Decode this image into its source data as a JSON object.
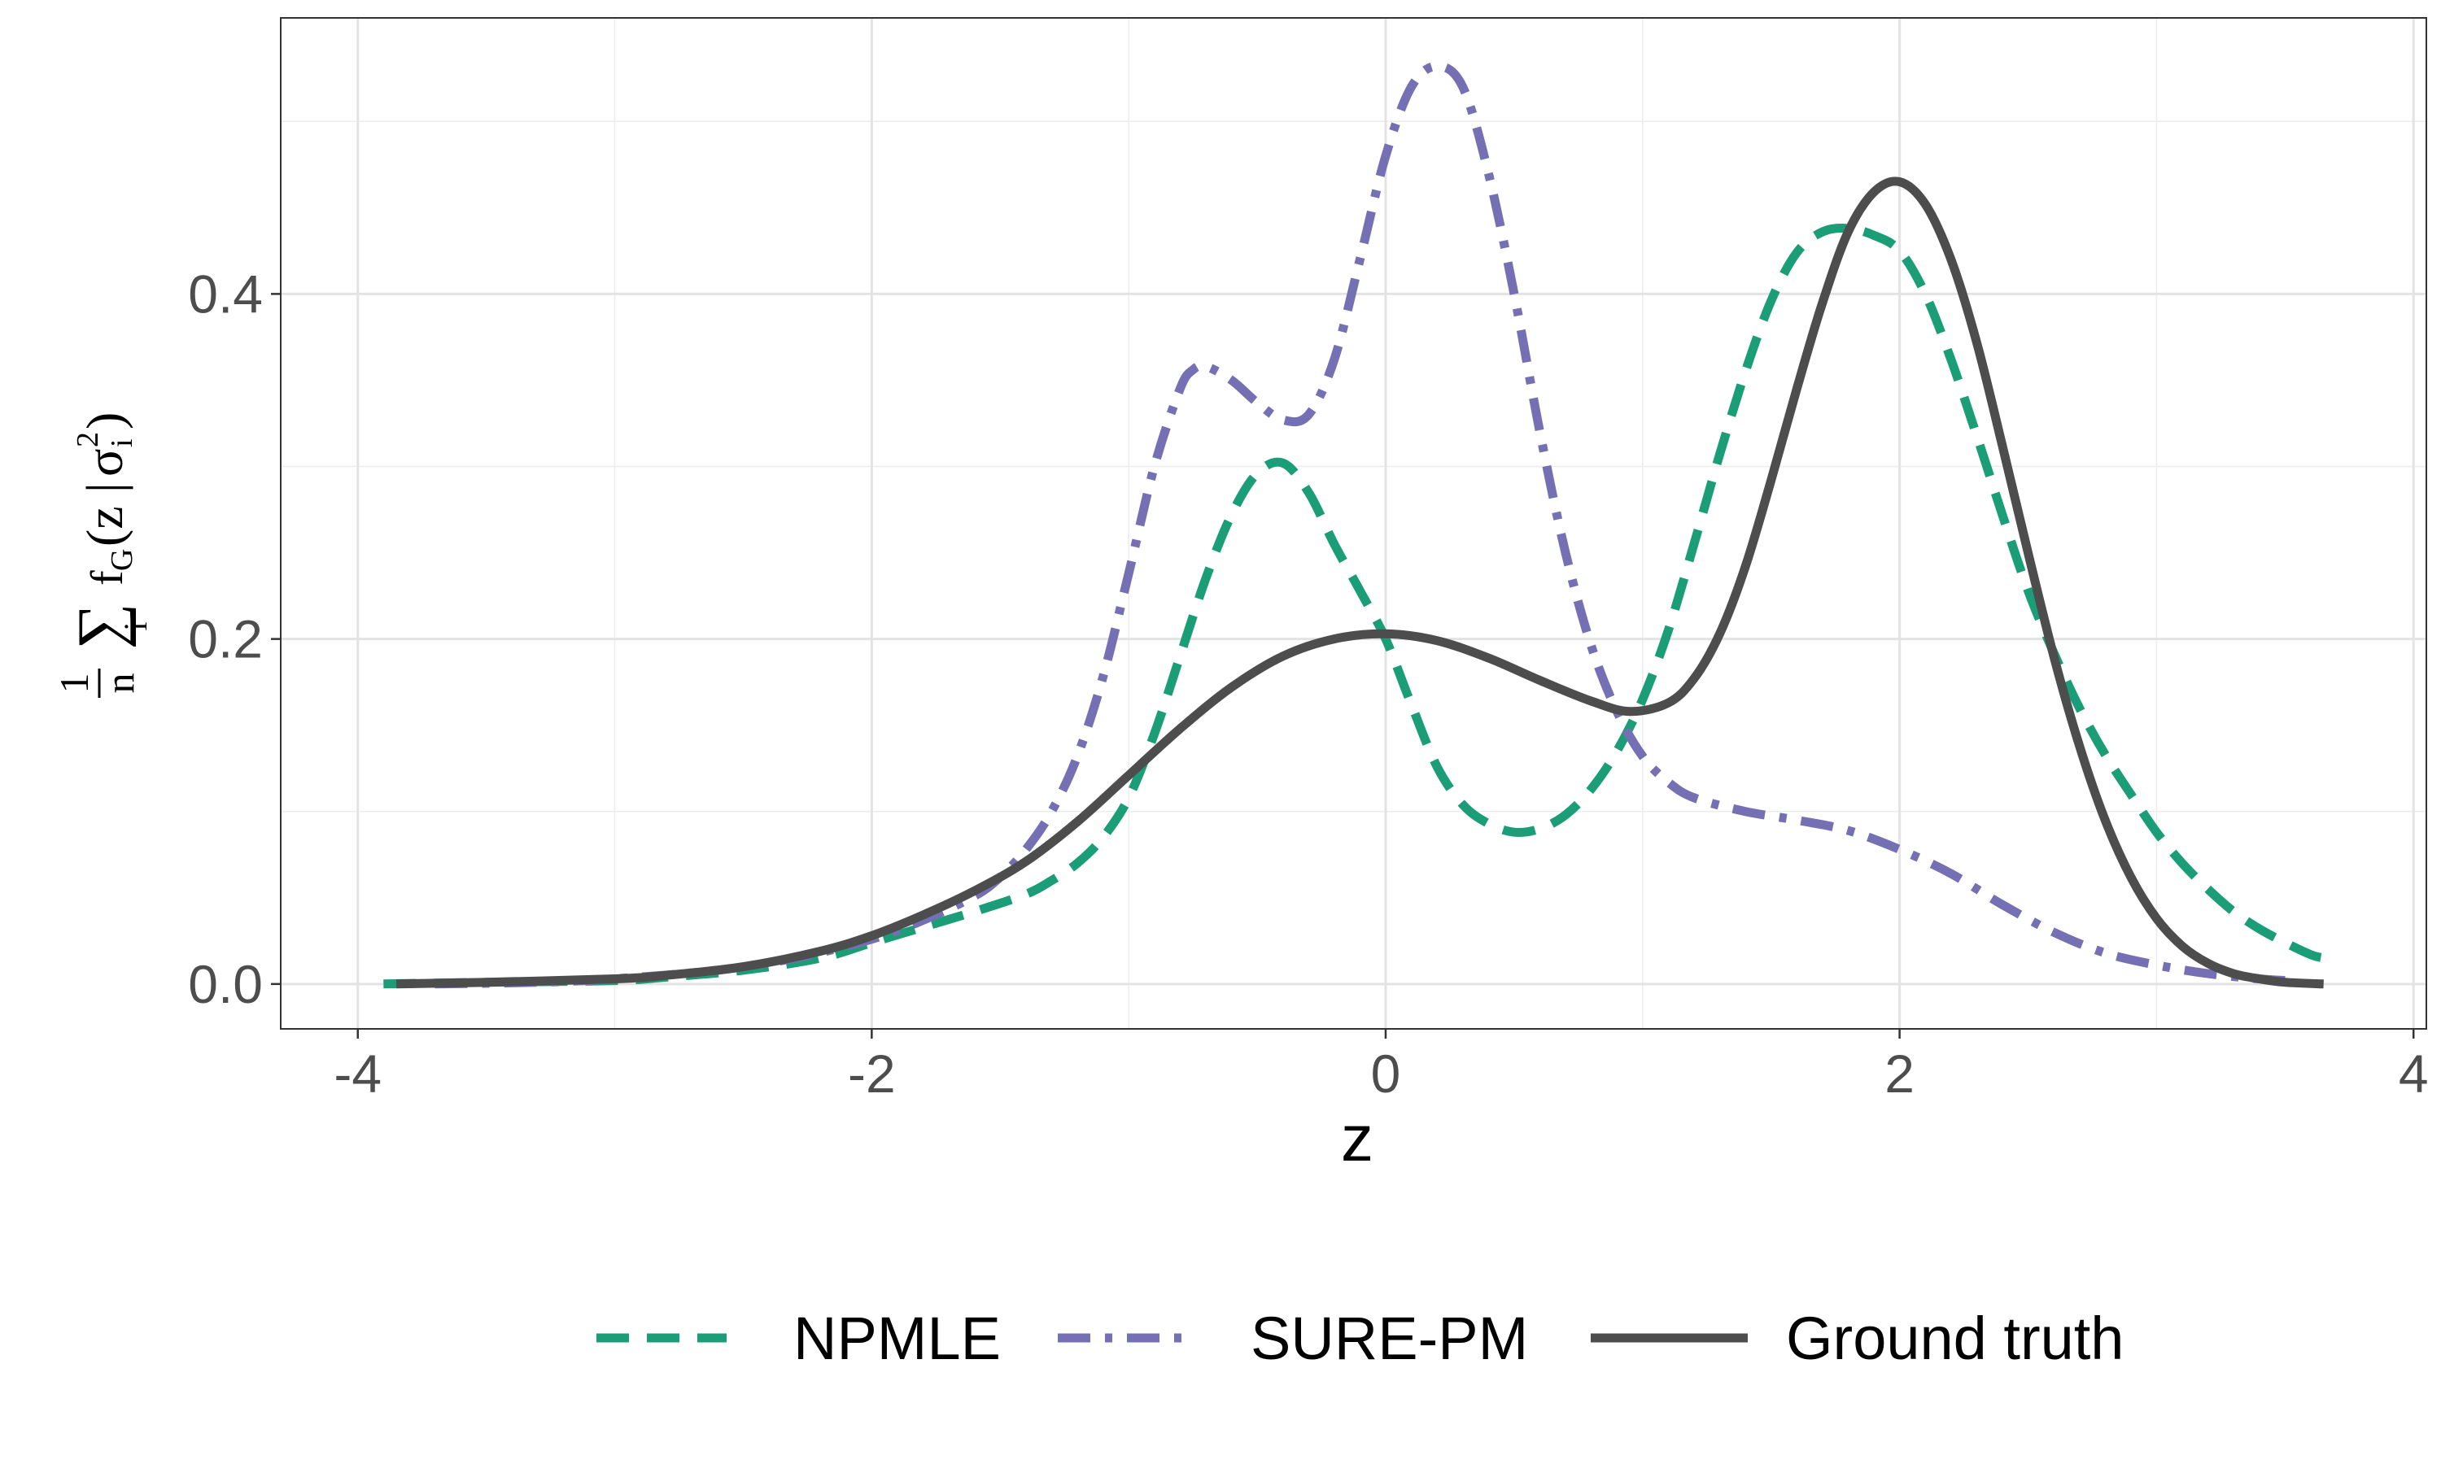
{
  "chart_data": {
    "type": "line",
    "title": "",
    "xlabel": "z",
    "ylabel": "1/n Σ_i f_G(z | σ_i^2)",
    "ylabel_parts": {
      "numerator": "1",
      "denominator": "n",
      "sum": "∑",
      "sum_index": "i",
      "f": "f",
      "f_sub": "G",
      "open": "(z",
      "bar": "|",
      "sigma": "σ",
      "sigma_sub": "i",
      "sigma_sup": "2",
      "close": ")"
    },
    "xlim": [
      -4.3,
      4.05
    ],
    "ylim": [
      -0.026,
      0.56
    ],
    "x_ticks": [
      -4,
      -2,
      0,
      2,
      4
    ],
    "x_tick_labels": [
      "-4",
      "-2",
      "0",
      "2",
      "4"
    ],
    "y_ticks": [
      0.0,
      0.2,
      0.4
    ],
    "y_tick_labels": [
      "0.0",
      "0.2",
      "0.4"
    ],
    "grid": true,
    "legend_position": "bottom",
    "series": [
      {
        "name": "NPMLE",
        "color": "#1b9e77",
        "dash": "dashed",
        "x": [
          -3.9,
          -3.5,
          -3.0,
          -2.8,
          -2.5,
          -2.2,
          -2.0,
          -1.8,
          -1.6,
          -1.4,
          -1.3,
          -1.2,
          -1.1,
          -1.0,
          -0.9,
          -0.8,
          -0.7,
          -0.6,
          -0.5,
          -0.4,
          -0.3,
          -0.2,
          -0.1,
          0.0,
          0.1,
          0.2,
          0.3,
          0.4,
          0.5,
          0.6,
          0.7,
          0.8,
          0.9,
          1.0,
          1.1,
          1.2,
          1.3,
          1.4,
          1.5,
          1.6,
          1.7,
          1.8,
          1.9,
          2.0,
          2.1,
          2.2,
          2.3,
          2.4,
          2.5,
          2.6,
          2.7,
          2.8,
          2.9,
          3.0,
          3.1,
          3.2,
          3.3,
          3.4,
          3.5,
          3.6,
          3.65
        ],
        "y": [
          0.0,
          0.001,
          0.002,
          0.004,
          0.008,
          0.015,
          0.024,
          0.033,
          0.042,
          0.052,
          0.06,
          0.07,
          0.085,
          0.108,
          0.145,
          0.19,
          0.235,
          0.272,
          0.296,
          0.302,
          0.285,
          0.255,
          0.228,
          0.2,
          0.162,
          0.126,
          0.104,
          0.093,
          0.088,
          0.09,
          0.098,
          0.113,
          0.135,
          0.165,
          0.205,
          0.255,
          0.307,
          0.355,
          0.396,
          0.424,
          0.436,
          0.438,
          0.434,
          0.425,
          0.4,
          0.362,
          0.318,
          0.272,
          0.228,
          0.192,
          0.16,
          0.133,
          0.11,
          0.088,
          0.07,
          0.055,
          0.042,
          0.032,
          0.024,
          0.017,
          0.015
        ]
      },
      {
        "name": "SURE-PM",
        "color": "#7570b3",
        "dash": "dotdash",
        "x": [
          -3.7,
          -3.3,
          -3.0,
          -2.6,
          -2.3,
          -2.0,
          -1.8,
          -1.6,
          -1.5,
          -1.4,
          -1.3,
          -1.2,
          -1.1,
          -1.0,
          -0.9,
          -0.8,
          -0.75,
          -0.7,
          -0.6,
          -0.5,
          -0.4,
          -0.3,
          -0.2,
          -0.1,
          0.0,
          0.1,
          0.2,
          0.3,
          0.4,
          0.5,
          0.6,
          0.7,
          0.8,
          0.9,
          1.0,
          1.1,
          1.2,
          1.4,
          1.6,
          1.8,
          2.0,
          2.2,
          2.4,
          2.6,
          2.8,
          3.0,
          3.2,
          3.4,
          3.5
        ],
        "y": [
          0.0,
          0.001,
          0.003,
          0.008,
          0.015,
          0.026,
          0.037,
          0.051,
          0.062,
          0.078,
          0.1,
          0.132,
          0.178,
          0.238,
          0.3,
          0.345,
          0.356,
          0.358,
          0.35,
          0.337,
          0.327,
          0.33,
          0.362,
          0.42,
          0.48,
          0.52,
          0.532,
          0.52,
          0.47,
          0.4,
          0.32,
          0.25,
          0.196,
          0.158,
          0.132,
          0.117,
          0.108,
          0.1,
          0.095,
          0.089,
          0.078,
          0.064,
          0.046,
          0.03,
          0.018,
          0.011,
          0.006,
          0.003,
          0.002
        ]
      },
      {
        "name": "Ground truth",
        "color": "#4d4d4d",
        "dash": "solid",
        "x": [
          -3.85,
          -3.5,
          -3.0,
          -2.8,
          -2.5,
          -2.2,
          -2.0,
          -1.8,
          -1.6,
          -1.4,
          -1.2,
          -1.0,
          -0.8,
          -0.6,
          -0.4,
          -0.2,
          0.0,
          0.2,
          0.4,
          0.6,
          0.8,
          0.95,
          1.1,
          1.2,
          1.3,
          1.4,
          1.5,
          1.6,
          1.7,
          1.8,
          1.9,
          2.0,
          2.1,
          2.2,
          2.3,
          2.4,
          2.5,
          2.6,
          2.7,
          2.8,
          2.9,
          3.0,
          3.1,
          3.2,
          3.3,
          3.4,
          3.5,
          3.65
        ],
        "y": [
          0.0,
          0.001,
          0.003,
          0.005,
          0.01,
          0.019,
          0.028,
          0.04,
          0.054,
          0.071,
          0.094,
          0.121,
          0.148,
          0.172,
          0.19,
          0.2,
          0.203,
          0.199,
          0.189,
          0.176,
          0.164,
          0.158,
          0.163,
          0.177,
          0.203,
          0.242,
          0.292,
          0.345,
          0.395,
          0.436,
          0.459,
          0.465,
          0.452,
          0.42,
          0.372,
          0.312,
          0.25,
          0.19,
          0.138,
          0.095,
          0.062,
          0.038,
          0.022,
          0.012,
          0.006,
          0.003,
          0.001,
          0.0
        ]
      }
    ]
  }
}
